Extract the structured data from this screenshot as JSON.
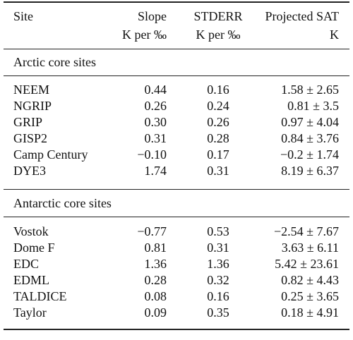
{
  "headers": {
    "site": "Site",
    "slope": "Slope",
    "slope_unit": "K per ‰",
    "stderr": "STDERR",
    "stderr_unit": "K per ‰",
    "sat": "Projected SAT",
    "sat_unit": "K"
  },
  "sections": [
    {
      "title": "Arctic core sites",
      "rows": [
        {
          "site": "NEEM",
          "slope": "0.44",
          "stderr": "0.16",
          "sat": "1.58 ± 2.65"
        },
        {
          "site": "NGRIP",
          "slope": "0.26",
          "stderr": "0.24",
          "sat": "0.81 ± 3.5"
        },
        {
          "site": "GRIP",
          "slope": "0.30",
          "stderr": "0.26",
          "sat": "0.97 ± 4.04"
        },
        {
          "site": "GISP2",
          "slope": "0.31",
          "stderr": "0.28",
          "sat": "0.84 ± 3.76"
        },
        {
          "site": "Camp Century",
          "slope": "−0.10",
          "stderr": "0.17",
          "sat": "−0.2 ± 1.74"
        },
        {
          "site": "DYE3",
          "slope": "1.74",
          "stderr": "0.31",
          "sat": "8.19 ± 6.37"
        }
      ]
    },
    {
      "title": "Antarctic core sites",
      "rows": [
        {
          "site": "Vostok",
          "slope": "−0.77",
          "stderr": "0.53",
          "sat": "−2.54 ± 7.67"
        },
        {
          "site": "Dome F",
          "slope": "0.81",
          "stderr": "0.31",
          "sat": "3.63 ± 6.11"
        },
        {
          "site": "EDC",
          "slope": "1.36",
          "stderr": "1.36",
          "sat": "5.42 ± 23.61"
        },
        {
          "site": "EDML",
          "slope": "0.28",
          "stderr": "0.32",
          "sat": "0.82 ± 4.43"
        },
        {
          "site": "TALDICE",
          "slope": "0.08",
          "stderr": "0.16",
          "sat": "0.25 ± 3.65"
        },
        {
          "site": "Taylor",
          "slope": "0.09",
          "stderr": "0.35",
          "sat": "0.18 ± 4.91"
        }
      ]
    }
  ]
}
